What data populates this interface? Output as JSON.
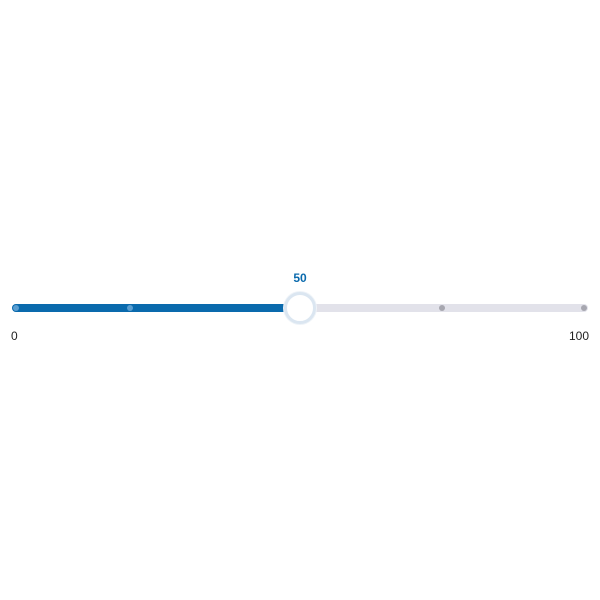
{
  "slider": {
    "min": 0,
    "max": 100,
    "value": 50,
    "value_label": "50",
    "min_label": "0",
    "max_label": "100",
    "tick_values": [
      0,
      20,
      75,
      100
    ],
    "fill_color": "#0a6aad",
    "track_color": "#e2e2ea"
  }
}
